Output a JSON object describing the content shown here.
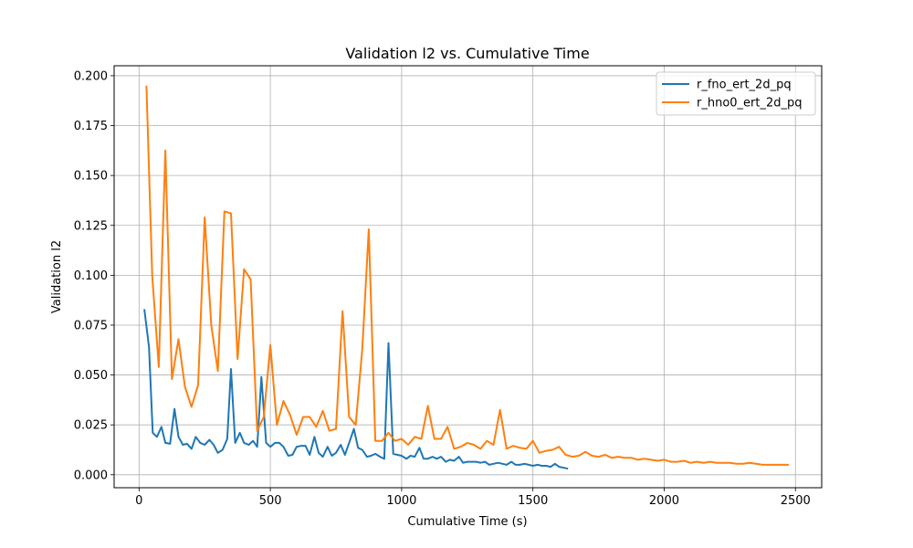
{
  "chart_data": {
    "type": "line",
    "title": "Validation l2 vs. Cumulative Time",
    "xlabel": "Cumulative Time (s)",
    "ylabel": "Validation l2",
    "xlim": [
      -95,
      2600
    ],
    "ylim": [
      -0.0065,
      0.205
    ],
    "xticks": [
      0,
      500,
      1000,
      1500,
      2000,
      2500
    ],
    "yticks": [
      0.0,
      0.025,
      0.05,
      0.075,
      0.1,
      0.125,
      0.15,
      0.175,
      0.2
    ],
    "xtick_labels": [
      "0",
      "500",
      "1000",
      "1500",
      "2000",
      "2500"
    ],
    "ytick_labels": [
      "0.000",
      "0.025",
      "0.050",
      "0.075",
      "0.100",
      "0.125",
      "0.150",
      "0.175",
      "0.200"
    ],
    "grid": true,
    "legend_position": "top-right",
    "series": [
      {
        "name": "r_fno_ert_2d_pq",
        "color": "#1f77b4",
        "x": [
          20,
          38,
          52,
          68,
          85,
          100,
          118,
          135,
          150,
          167,
          183,
          200,
          216,
          233,
          250,
          268,
          284,
          300,
          318,
          336,
          350,
          366,
          384,
          400,
          418,
          434,
          450,
          466,
          484,
          500,
          518,
          534,
          550,
          568,
          584,
          600,
          618,
          634,
          650,
          668,
          684,
          700,
          718,
          734,
          750,
          768,
          784,
          800,
          818,
          834,
          850,
          868,
          884,
          900,
          918,
          934,
          950,
          968,
          984,
          1000,
          1018,
          1034,
          1050,
          1068,
          1084,
          1100,
          1118,
          1134,
          1150,
          1168,
          1184,
          1200,
          1218,
          1234,
          1250,
          1268,
          1284,
          1300,
          1318,
          1334,
          1350,
          1368,
          1384,
          1400,
          1418,
          1434,
          1450,
          1468,
          1484,
          1500,
          1518,
          1534,
          1550,
          1568,
          1584,
          1600,
          1618,
          1634
        ],
        "values": [
          0.083,
          0.064,
          0.021,
          0.019,
          0.024,
          0.016,
          0.0155,
          0.033,
          0.019,
          0.015,
          0.0155,
          0.013,
          0.019,
          0.016,
          0.015,
          0.0175,
          0.015,
          0.011,
          0.0125,
          0.018,
          0.053,
          0.016,
          0.021,
          0.016,
          0.015,
          0.017,
          0.014,
          0.049,
          0.016,
          0.014,
          0.016,
          0.016,
          0.014,
          0.0095,
          0.01,
          0.014,
          0.0145,
          0.0145,
          0.01,
          0.019,
          0.011,
          0.009,
          0.014,
          0.0095,
          0.011,
          0.015,
          0.01,
          0.016,
          0.023,
          0.0135,
          0.0125,
          0.009,
          0.0095,
          0.0105,
          0.009,
          0.008,
          0.066,
          0.0105,
          0.01,
          0.0095,
          0.008,
          0.0095,
          0.009,
          0.0135,
          0.008,
          0.008,
          0.009,
          0.008,
          0.009,
          0.0065,
          0.0075,
          0.007,
          0.009,
          0.006,
          0.0065,
          0.0065,
          0.0065,
          0.006,
          0.0065,
          0.005,
          0.0055,
          0.006,
          0.0055,
          0.005,
          0.0065,
          0.005,
          0.005,
          0.0055,
          0.005,
          0.0045,
          0.005,
          0.0045,
          0.0045,
          0.004,
          0.0055,
          0.004,
          0.0035,
          0.003
        ]
      },
      {
        "name": "r_hno0_ert_2d_pq",
        "color": "#ff7f0e",
        "x": [
          28,
          50,
          75,
          100,
          125,
          150,
          175,
          200,
          225,
          250,
          275,
          300,
          325,
          350,
          375,
          400,
          425,
          450,
          475,
          500,
          525,
          550,
          575,
          600,
          625,
          650,
          675,
          700,
          725,
          750,
          775,
          800,
          825,
          850,
          875,
          900,
          925,
          950,
          975,
          1000,
          1025,
          1050,
          1075,
          1100,
          1125,
          1150,
          1175,
          1200,
          1225,
          1250,
          1275,
          1300,
          1325,
          1350,
          1375,
          1400,
          1425,
          1450,
          1475,
          1500,
          1525,
          1550,
          1575,
          1600,
          1625,
          1650,
          1675,
          1700,
          1725,
          1750,
          1775,
          1800,
          1825,
          1850,
          1875,
          1900,
          1925,
          1950,
          1975,
          2000,
          2025,
          2050,
          2075,
          2100,
          2125,
          2150,
          2175,
          2200,
          2225,
          2250,
          2275,
          2300,
          2325,
          2350,
          2375,
          2400,
          2425,
          2450,
          2475
        ],
        "values": [
          0.195,
          0.1,
          0.054,
          0.1625,
          0.048,
          0.068,
          0.044,
          0.034,
          0.045,
          0.129,
          0.075,
          0.052,
          0.132,
          0.131,
          0.058,
          0.103,
          0.098,
          0.022,
          0.029,
          0.065,
          0.025,
          0.037,
          0.03,
          0.02,
          0.029,
          0.029,
          0.024,
          0.032,
          0.022,
          0.023,
          0.082,
          0.029,
          0.025,
          0.063,
          0.123,
          0.017,
          0.017,
          0.021,
          0.017,
          0.018,
          0.015,
          0.019,
          0.018,
          0.0345,
          0.018,
          0.018,
          0.024,
          0.013,
          0.014,
          0.016,
          0.015,
          0.013,
          0.017,
          0.015,
          0.0325,
          0.013,
          0.0145,
          0.0135,
          0.013,
          0.017,
          0.011,
          0.012,
          0.0125,
          0.014,
          0.01,
          0.009,
          0.0095,
          0.0115,
          0.0095,
          0.009,
          0.01,
          0.0085,
          0.009,
          0.0085,
          0.0085,
          0.0075,
          0.008,
          0.0075,
          0.007,
          0.0075,
          0.0065,
          0.0065,
          0.007,
          0.006,
          0.0065,
          0.006,
          0.0065,
          0.006,
          0.006,
          0.006,
          0.0055,
          0.0055,
          0.006,
          0.0055,
          0.005,
          0.005,
          0.005,
          0.005,
          0.005
        ]
      }
    ]
  }
}
